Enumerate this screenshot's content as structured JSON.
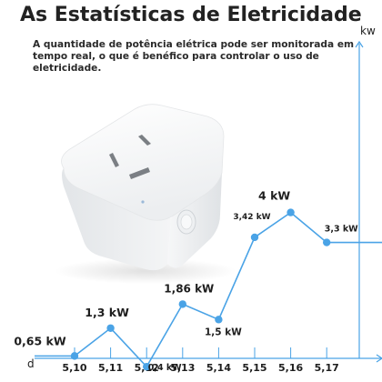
{
  "title": "As Estatísticas de Eletricidade",
  "description": "A quantidade de potência elétrica pode ser monitorada em tempo real, o que é benéfico para controlar o uso de eletricidade.",
  "colors": {
    "line": "#4aa3e6",
    "axis": "#4aa3e6",
    "text": "#1e1e1e"
  },
  "chart_data": {
    "type": "line",
    "categories": [
      "5,10",
      "5,11",
      "5,12",
      "5,13",
      "5,14",
      "5,15",
      "5,16",
      "5,17"
    ],
    "values": [
      0.65,
      1.3,
      0.4,
      1.86,
      1.5,
      3.42,
      4,
      3.3
    ],
    "data_labels": [
      "0,65 kW",
      "1,3 kW",
      "0,4 kW",
      "1,86 kW",
      "1,5 kW",
      "3,42 kW",
      "4 kW",
      "3,3 kW"
    ],
    "xlabel": "d",
    "ylabel": "kw",
    "ylim": [
      0,
      5
    ],
    "grid": false
  }
}
